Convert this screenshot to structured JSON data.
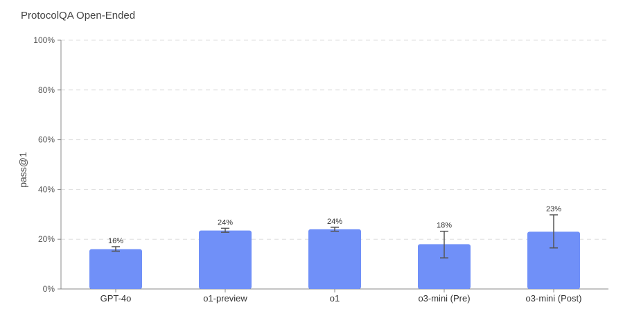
{
  "chart_data": {
    "type": "bar",
    "title": "ProtocolQA Open-Ended",
    "ylabel": "pass@1",
    "xlabel": "",
    "ylim": [
      0,
      100
    ],
    "yticks": [
      0,
      20,
      40,
      60,
      80,
      100
    ],
    "ytick_labels": [
      "0%",
      "20%",
      "40%",
      "60%",
      "80%",
      "100%"
    ],
    "grid": "horizontal-dashed",
    "bar_color": "#7090f8",
    "categories": [
      "GPT-4o",
      "o1-preview",
      "o1",
      "o3-mini (Pre)",
      "o3-mini (Post)"
    ],
    "values": [
      16,
      23.5,
      24,
      18,
      23
    ],
    "labels": [
      "16%",
      "24%",
      "24%",
      "18%",
      "23%"
    ],
    "error_low": [
      15.2,
      22.8,
      23.2,
      12.5,
      16.5
    ],
    "error_high": [
      17.0,
      24.4,
      24.8,
      23.2,
      29.8
    ]
  }
}
